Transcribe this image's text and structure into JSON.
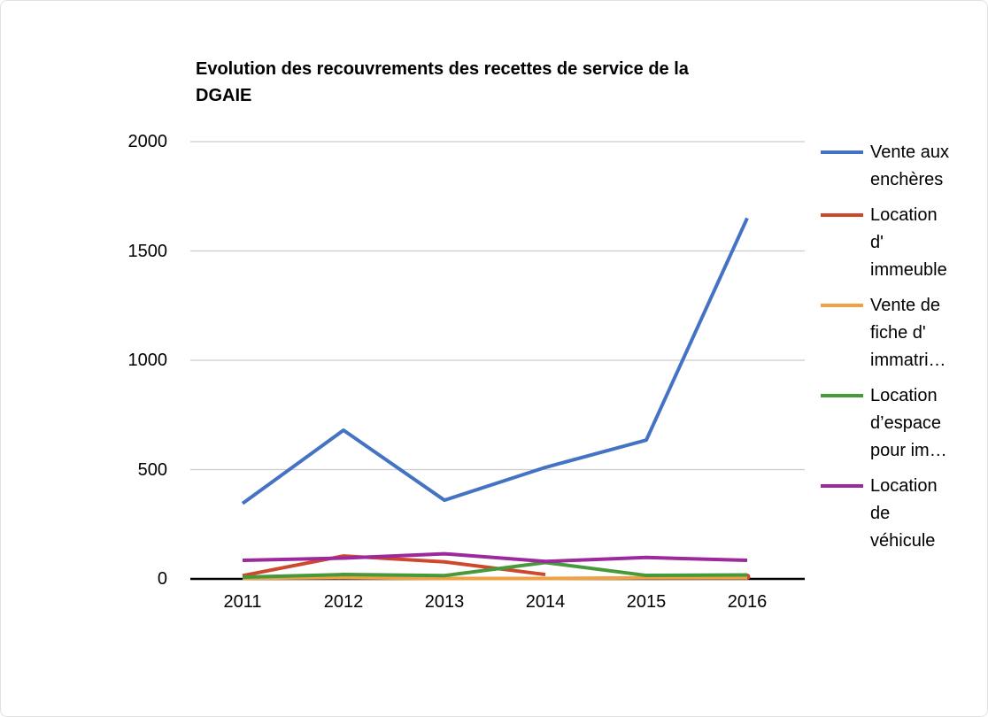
{
  "chart": {
    "title": "Evolution des recouvrements des recettes de service de la\nDGAIE"
  },
  "chart_data": {
    "type": "line",
    "title": "Evolution des recouvrements des recettes de service de la DGAIE",
    "x": [
      2011,
      2012,
      2013,
      2014,
      2015,
      2016
    ],
    "series": [
      {
        "name": "Vente aux enchères",
        "legend_label": "Vente aux\nenchères",
        "color": "#4573c4",
        "values": [
          345,
          680,
          360,
          510,
          635,
          1650
        ]
      },
      {
        "name": "Location d' immeuble",
        "legend_label": "Location\nd'\nimmeuble",
        "color": "#ce482e",
        "values": [
          15,
          105,
          78,
          20,
          null,
          10
        ]
      },
      {
        "name": "Vente de fiche d' immatri…",
        "legend_label": "Vente de\nfiche d'\nimmatri…",
        "color": "#efa143",
        "values": [
          3,
          6,
          2,
          2,
          5,
          5
        ]
      },
      {
        "name": "Location d’espace pour im…",
        "legend_label": "Location\nd’espace\npour im…",
        "color": "#479a3c",
        "values": [
          8,
          20,
          15,
          75,
          16,
          18
        ]
      },
      {
        "name": "Location de véhicule",
        "legend_label": "Location\nde\nvéhicule",
        "color": "#9d2a9d",
        "values": [
          85,
          95,
          115,
          80,
          98,
          85
        ]
      }
    ],
    "ylim": [
      0,
      2000
    ],
    "y_ticks": [
      0,
      500,
      1000,
      1500,
      2000
    ],
    "grid": true,
    "gridline_color": "#cccccc",
    "axis_color": "#000000",
    "legend_position": "right"
  }
}
